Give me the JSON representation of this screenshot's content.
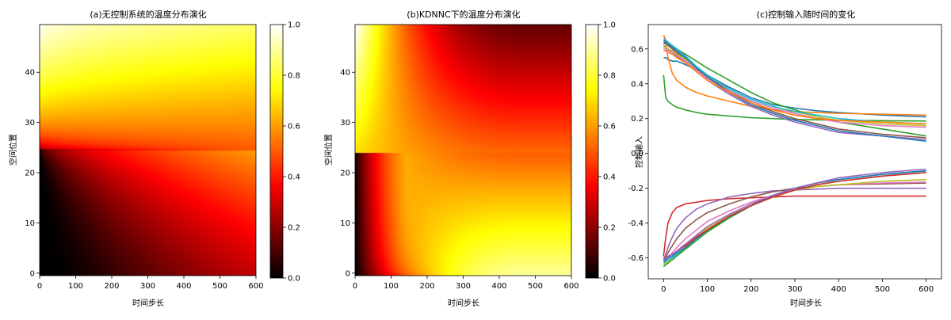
{
  "colors": {
    "hot_colormap": [
      "#000000",
      "#ff0000",
      "#ffff00",
      "#ffffff"
    ],
    "line_palette": [
      "#1f77b4",
      "#ff7f0e",
      "#2ca02c",
      "#d62728",
      "#9467bd",
      "#8c564b",
      "#e377c2",
      "#7f7f7f",
      "#bcbd22",
      "#17becf"
    ]
  },
  "chart_data": [
    {
      "type": "heatmap",
      "colormap": "hot",
      "title": "(a)无控制系统的温度分布演化",
      "xlabel": "时间步长",
      "ylabel": "空间位置",
      "xlim": [
        0,
        600
      ],
      "ylim": [
        0,
        49
      ],
      "xticks": [
        "0",
        "100",
        "200",
        "300",
        "400",
        "500",
        "600"
      ],
      "yticks": [
        "0",
        "10",
        "20",
        "30",
        "40"
      ],
      "colorbar": {
        "ticks": [
          "0.0",
          "0.2",
          "0.4",
          "0.6",
          "0.8",
          "1.0"
        ],
        "range": [
          0,
          1
        ]
      },
      "description_values": {
        "initial_profile": "0 for position < 25, rising to 1 at position 49",
        "t600_bottom": 0.1,
        "t600_middle": 0.5,
        "t600_top": 0.85
      }
    },
    {
      "type": "heatmap",
      "colormap": "hot",
      "title": "(b)KDNNC下的温度分布演化",
      "xlabel": "时间步长",
      "ylabel": "空间位置",
      "xlim": [
        0,
        600
      ],
      "ylim": [
        0,
        49
      ],
      "xticks": [
        "0",
        "100",
        "200",
        "300",
        "400",
        "500",
        "600"
      ],
      "yticks": [
        "0",
        "10",
        "20",
        "30",
        "40"
      ],
      "colorbar": {
        "ticks": [
          "0.0",
          "0.2",
          "0.4",
          "0.6",
          "0.8",
          "1.0"
        ],
        "range": [
          0,
          1
        ]
      },
      "description_values": {
        "t600_bottom": 0.9,
        "t600_top": 0.15
      }
    },
    {
      "type": "line",
      "title": "(c)控制输入随时间的变化",
      "xlabel": "时间步长",
      "ylabel": "控制输入",
      "xlim": [
        -35,
        635
      ],
      "ylim": [
        -0.72,
        0.74
      ],
      "xticks": [
        0,
        100,
        200,
        300,
        400,
        500,
        600
      ],
      "xtick_labels": [
        "0",
        "100",
        "200",
        "300",
        "400",
        "500",
        "600"
      ],
      "yticks": [
        -0.6,
        -0.4,
        -0.2,
        0.0,
        0.2,
        0.4,
        0.6
      ],
      "ytick_labels": [
        "-0.6",
        "-0.4",
        "-0.2",
        "0.0",
        "0.2",
        "0.4",
        "0.6"
      ],
      "x": [
        0,
        5,
        10,
        20,
        30,
        50,
        75,
        100,
        150,
        200,
        250,
        300,
        350,
        400,
        500,
        600
      ],
      "series": [
        {
          "color": "#1f77b4",
          "values": [
            0.55,
            0.55,
            0.54,
            0.53,
            0.53,
            0.51,
            0.48,
            0.45,
            0.38,
            0.32,
            0.28,
            0.26,
            0.245,
            0.235,
            0.22,
            0.21
          ]
        },
        {
          "color": "#ff7f0e",
          "values": [
            0.68,
            0.65,
            0.55,
            0.46,
            0.42,
            0.38,
            0.35,
            0.33,
            0.3,
            0.27,
            0.25,
            0.24,
            0.235,
            0.23,
            0.225,
            0.22
          ]
        },
        {
          "color": "#2ca02c",
          "values": [
            0.45,
            0.32,
            0.3,
            0.28,
            0.265,
            0.25,
            0.235,
            0.225,
            0.215,
            0.205,
            0.2,
            0.195,
            0.193,
            0.19,
            0.188,
            0.186
          ]
        },
        {
          "color": "#2ca02c",
          "values": [
            0.63,
            0.63,
            0.62,
            0.61,
            0.6,
            0.57,
            0.53,
            0.49,
            0.42,
            0.35,
            0.29,
            0.25,
            0.21,
            0.18,
            0.14,
            0.1
          ]
        },
        {
          "color": "#9467bd",
          "values": [
            0.62,
            0.61,
            0.6,
            0.58,
            0.56,
            0.52,
            0.47,
            0.42,
            0.34,
            0.27,
            0.22,
            0.18,
            0.15,
            0.12,
            0.1,
            0.08
          ]
        },
        {
          "color": "#8c564b",
          "values": [
            0.64,
            0.63,
            0.62,
            0.6,
            0.58,
            0.54,
            0.49,
            0.44,
            0.36,
            0.29,
            0.24,
            0.2,
            0.17,
            0.14,
            0.11,
            0.09
          ]
        },
        {
          "color": "#e377c2",
          "values": [
            0.6,
            0.6,
            0.59,
            0.58,
            0.57,
            0.53,
            0.48,
            0.43,
            0.36,
            0.3,
            0.26,
            0.23,
            0.2,
            0.18,
            0.16,
            0.15
          ]
        },
        {
          "color": "#bcbd22",
          "values": [
            0.61,
            0.61,
            0.6,
            0.59,
            0.57,
            0.54,
            0.49,
            0.45,
            0.37,
            0.31,
            0.27,
            0.24,
            0.21,
            0.19,
            0.17,
            0.16
          ]
        },
        {
          "color": "#17becf",
          "values": [
            0.66,
            0.65,
            0.64,
            0.62,
            0.6,
            0.56,
            0.5,
            0.45,
            0.37,
            0.31,
            0.27,
            0.24,
            0.22,
            0.2,
            0.18,
            0.17
          ]
        },
        {
          "color": "#1f77b4",
          "values": [
            0.65,
            0.64,
            0.63,
            0.61,
            0.59,
            0.55,
            0.49,
            0.44,
            0.35,
            0.28,
            0.23,
            0.19,
            0.16,
            0.13,
            0.1,
            0.07
          ]
        },
        {
          "color": "#ff7f0e",
          "values": [
            0.59,
            0.59,
            0.58,
            0.57,
            0.55,
            0.52,
            0.47,
            0.42,
            0.35,
            0.29,
            0.25,
            0.22,
            0.2,
            0.19,
            0.18,
            0.17
          ]
        },
        {
          "color": "#d62728",
          "values": [
            -0.59,
            -0.48,
            -0.4,
            -0.34,
            -0.31,
            -0.29,
            -0.28,
            -0.27,
            -0.26,
            -0.255,
            -0.25,
            -0.245,
            -0.245,
            -0.245,
            -0.245,
            -0.245
          ]
        },
        {
          "color": "#9467bd",
          "values": [
            -0.62,
            -0.58,
            -0.54,
            -0.48,
            -0.43,
            -0.37,
            -0.32,
            -0.29,
            -0.25,
            -0.23,
            -0.215,
            -0.21,
            -0.205,
            -0.2,
            -0.2,
            -0.2
          ]
        },
        {
          "color": "#8c564b",
          "values": [
            -0.6,
            -0.59,
            -0.57,
            -0.53,
            -0.49,
            -0.43,
            -0.38,
            -0.34,
            -0.29,
            -0.25,
            -0.22,
            -0.2,
            -0.19,
            -0.18,
            -0.175,
            -0.17
          ]
        },
        {
          "color": "#e377c2",
          "values": [
            -0.62,
            -0.61,
            -0.6,
            -0.57,
            -0.54,
            -0.49,
            -0.44,
            -0.39,
            -0.33,
            -0.28,
            -0.24,
            -0.21,
            -0.19,
            -0.18,
            -0.17,
            -0.165
          ]
        },
        {
          "color": "#bcbd22",
          "values": [
            -0.64,
            -0.63,
            -0.62,
            -0.6,
            -0.58,
            -0.54,
            -0.48,
            -0.43,
            -0.36,
            -0.3,
            -0.25,
            -0.21,
            -0.19,
            -0.18,
            -0.16,
            -0.15
          ]
        },
        {
          "color": "#17becf",
          "values": [
            -0.63,
            -0.62,
            -0.61,
            -0.6,
            -0.58,
            -0.55,
            -0.5,
            -0.45,
            -0.37,
            -0.3,
            -0.24,
            -0.2,
            -0.17,
            -0.15,
            -0.12,
            -0.1
          ]
        },
        {
          "color": "#1f77b4",
          "values": [
            -0.62,
            -0.61,
            -0.6,
            -0.59,
            -0.57,
            -0.54,
            -0.49,
            -0.44,
            -0.37,
            -0.3,
            -0.24,
            -0.2,
            -0.17,
            -0.15,
            -0.12,
            -0.1
          ]
        },
        {
          "color": "#2ca02c",
          "values": [
            -0.65,
            -0.64,
            -0.63,
            -0.61,
            -0.59,
            -0.55,
            -0.5,
            -0.45,
            -0.37,
            -0.3,
            -0.25,
            -0.21,
            -0.18,
            -0.16,
            -0.13,
            -0.11
          ]
        },
        {
          "color": "#d62728",
          "values": [
            -0.6,
            -0.6,
            -0.59,
            -0.58,
            -0.56,
            -0.53,
            -0.48,
            -0.44,
            -0.36,
            -0.3,
            -0.25,
            -0.21,
            -0.18,
            -0.16,
            -0.13,
            -0.11
          ]
        },
        {
          "color": "#9467bd",
          "values": [
            -0.61,
            -0.6,
            -0.59,
            -0.58,
            -0.56,
            -0.52,
            -0.47,
            -0.42,
            -0.35,
            -0.29,
            -0.24,
            -0.2,
            -0.17,
            -0.14,
            -0.11,
            -0.09
          ]
        }
      ]
    }
  ]
}
